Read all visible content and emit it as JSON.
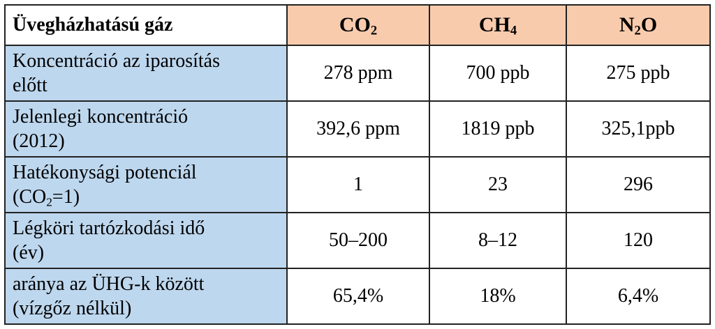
{
  "table": {
    "header": {
      "label": "Üvegházhatású gáz",
      "gases": [
        {
          "main": "CO",
          "sub": "2",
          "rest": ""
        },
        {
          "main": "CH",
          "sub": "4",
          "rest": ""
        },
        {
          "main": "N",
          "sub": "2",
          "rest": "O"
        }
      ]
    },
    "rows": [
      {
        "label_line1": "Koncentráció az iparosítás",
        "label_line2": "előtt",
        "values": [
          "278 ppm",
          "700 ppb",
          "275 ppb"
        ]
      },
      {
        "label_line1": "Jelenlegi koncentráció",
        "label_line2": "(2012)",
        "values": [
          "392,6 ppm",
          "1819 ppb",
          "325,1ppb"
        ]
      },
      {
        "label_line1": "Hatékonysági potenciál",
        "label_line2_pre": "(CO",
        "label_line2_sub": "2",
        "label_line2_post": "=1)",
        "values": [
          "1",
          "23",
          "296"
        ]
      },
      {
        "label_line1": "Légköri tartózkodási idő",
        "label_line2": "(év)",
        "values": [
          "50–200",
          "8–12",
          "120"
        ]
      },
      {
        "label_line1": "aránya az ÜHG-k között",
        "label_line2": "(vízgőz nélkül)",
        "values": [
          "65,4%",
          "18%",
          "6,4%"
        ]
      }
    ]
  },
  "colors": {
    "header_gas_bg": "#f8cbad",
    "row_label_bg": "#bdd7ee",
    "border": "#222222"
  }
}
